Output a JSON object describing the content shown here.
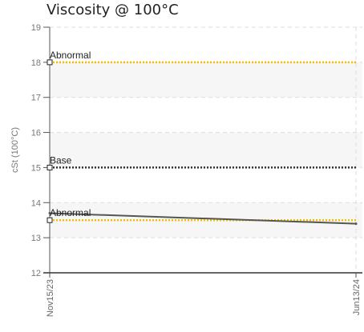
{
  "chart_data": {
    "type": "line",
    "title": "Viscosity @ 100°C",
    "ylabel": "cSt (100°C)",
    "xlabel": "",
    "ylim": [
      12,
      19
    ],
    "yticks": [
      12,
      13,
      14,
      15,
      16,
      17,
      18,
      19
    ],
    "x_categories": [
      "Nov15/23",
      "Jun13/24"
    ],
    "grid": true,
    "series": [
      {
        "values": [
          13.7,
          13.4
        ],
        "color": "#555555"
      }
    ],
    "reference_lines": [
      {
        "label": "Abnormal",
        "value": 18.0,
        "color": "#f2c200"
      },
      {
        "label": "Base",
        "value": 15.0,
        "color": "#333333"
      },
      {
        "label": "Abnormal",
        "value": 13.5,
        "color": "#f2c200"
      }
    ],
    "bands": [
      {
        "from": 17,
        "to": 18,
        "color": "#f6f6f6"
      },
      {
        "from": 15,
        "to": 16,
        "color": "#f6f6f6"
      },
      {
        "from": 13,
        "to": 14,
        "color": "#f6f6f6"
      }
    ]
  }
}
